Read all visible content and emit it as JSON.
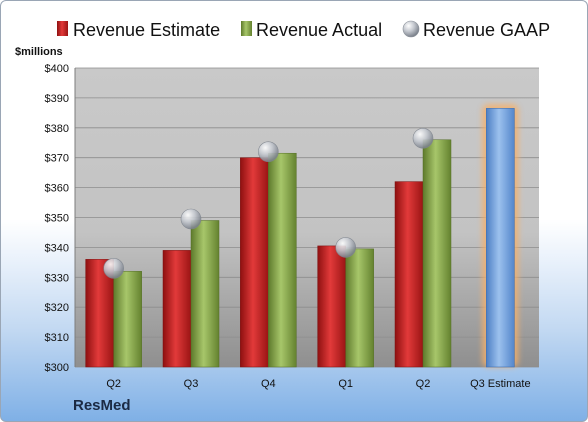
{
  "company": "ResMed",
  "chart_data": {
    "type": "bar",
    "ylabel": "$millions",
    "ylim": [
      300,
      400
    ],
    "y_ticks": [
      "$300",
      "$310",
      "$320",
      "$330",
      "$340",
      "$350",
      "$360",
      "$370",
      "$380",
      "$390",
      "$400"
    ],
    "categories": [
      "Q2",
      "Q3",
      "Q4",
      "Q1",
      "Q2",
      "Q3 Estimate"
    ],
    "legend_position": "top",
    "grid": true,
    "series": [
      {
        "name": "Revenue Estimate",
        "kind": "bar",
        "color": "#cc1f1f",
        "values": [
          336,
          339,
          370,
          340.5,
          362,
          386.5
        ]
      },
      {
        "name": "Revenue Actual",
        "kind": "bar",
        "color": "#8aac4c",
        "values": [
          332,
          349,
          371.5,
          339.5,
          376,
          null
        ]
      },
      {
        "name": "Revenue GAAP",
        "kind": "marker",
        "color": "#b8bec8",
        "values": [
          333,
          349.5,
          372,
          340,
          376.5,
          null
        ]
      }
    ],
    "estimate_color": "#6f9fdd",
    "highlight_color": "#f5b06a"
  }
}
